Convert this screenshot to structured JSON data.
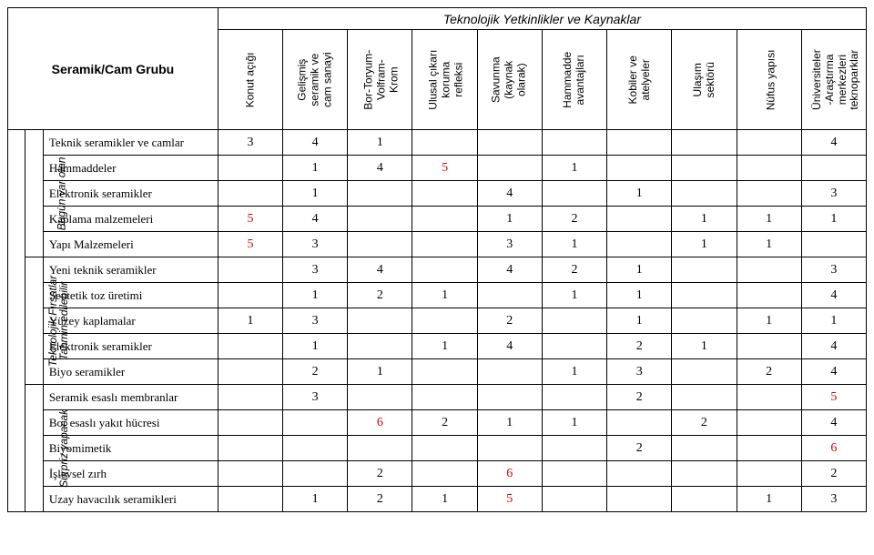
{
  "title": "Seramik/Cam Grubu",
  "super_header": "Teknolojik Yetkinlikler ve Kaynaklar",
  "outer_side_label": "Teknolojik Fırsatlar",
  "groups": [
    {
      "label": "Bugün var olan",
      "count": 5
    },
    {
      "label": "Tahmin edilebilir",
      "count": 5
    },
    {
      "label": "Sürpriz yapacak",
      "count": 5
    }
  ],
  "columns": [
    "Konut açığı",
    "Gelişmiş\nseramik ve\ncam sanayi",
    "Bor-Toryum-\nVolfram-\nKrom",
    "Ulusal çıkarı\nkoruma\nrefleksi",
    "Savunma\n(kaynak\nolarak)",
    "Hammadde\navantajları",
    "Kobiler ve\natelyeler",
    "Ulaşım\nsektörü",
    "Nüfus yapısı",
    "Üniversiteler\n-Araştırma\nmerkezleri\nteknoparklar"
  ],
  "rows": [
    {
      "label": "Teknik seramikler ve camlar",
      "cells": [
        "3",
        "4",
        "1",
        "",
        "",
        "",
        "",
        "",
        "",
        "4"
      ],
      "red": []
    },
    {
      "label": "Hammaddeler",
      "cells": [
        "",
        "1",
        "4",
        "5",
        "",
        "1",
        "",
        "",
        "",
        ""
      ],
      "red": [
        3
      ]
    },
    {
      "label": "Elektronik seramikler",
      "cells": [
        "",
        "1",
        "",
        "",
        "4",
        "",
        "1",
        "",
        "",
        "3"
      ],
      "red": []
    },
    {
      "label": "Kaplama malzemeleri",
      "cells": [
        "5",
        "4",
        "",
        "",
        "1",
        "2",
        "",
        "1",
        "1",
        "1"
      ],
      "red": [
        0
      ]
    },
    {
      "label": "Yapı Malzemeleri",
      "cells": [
        "5",
        "3",
        "",
        "",
        "3",
        "1",
        "",
        "1",
        "1",
        ""
      ],
      "red": [
        0
      ]
    },
    {
      "label": "Yeni teknik seramikler",
      "cells": [
        "",
        "3",
        "4",
        "",
        "4",
        "2",
        "1",
        "",
        "",
        "3"
      ],
      "red": []
    },
    {
      "label": "Sentetik toz üretimi",
      "cells": [
        "",
        "1",
        "2",
        "1",
        "",
        "1",
        "1",
        "",
        "",
        "4"
      ],
      "red": []
    },
    {
      "label": "Yüzey kaplamalar",
      "cells": [
        "1",
        "3",
        "",
        "",
        "2",
        "",
        "1",
        "",
        "1",
        "1"
      ],
      "red": []
    },
    {
      "label": "Elektronik seramikler",
      "cells": [
        "",
        "1",
        "",
        "1",
        "4",
        "",
        "2",
        "1",
        "",
        "4"
      ],
      "red": []
    },
    {
      "label": "Biyo seramikler",
      "cells": [
        "",
        "2",
        "1",
        "",
        "",
        "1",
        "3",
        "",
        "2",
        "4"
      ],
      "red": []
    },
    {
      "label": "Seramik esaslı membranlar",
      "cells": [
        "",
        "3",
        "",
        "",
        "",
        "",
        "2",
        "",
        "",
        "5"
      ],
      "red": [
        9
      ]
    },
    {
      "label": "Bor esaslı yakıt hücresi",
      "cells": [
        "",
        "",
        "6",
        "2",
        "1",
        "1",
        "",
        "2",
        "",
        "4"
      ],
      "red": [
        2
      ]
    },
    {
      "label": "Biyomimetik",
      "cells": [
        "",
        "",
        "",
        "",
        "",
        "",
        "2",
        "",
        "",
        "6"
      ],
      "red": [
        9
      ]
    },
    {
      "label": "İşlevsel zırh",
      "cells": [
        "",
        "",
        "2",
        "",
        "6",
        "",
        "",
        "",
        "",
        "2"
      ],
      "red": [
        4
      ]
    },
    {
      "label": "Uzay havacılık seramikleri",
      "cells": [
        "",
        "1",
        "2",
        "1",
        "5",
        "",
        "",
        "",
        "1",
        "3"
      ],
      "red": [
        4
      ]
    }
  ],
  "styling": {
    "red_hex": "#d40000",
    "border": "#000000",
    "bg": "#ffffff",
    "font_body": "Times New Roman",
    "font_headers": "Verdana",
    "cell_font_size": 14,
    "row_label_font_size": 13,
    "col_header_font_size": 12,
    "title_font_size": 14
  }
}
